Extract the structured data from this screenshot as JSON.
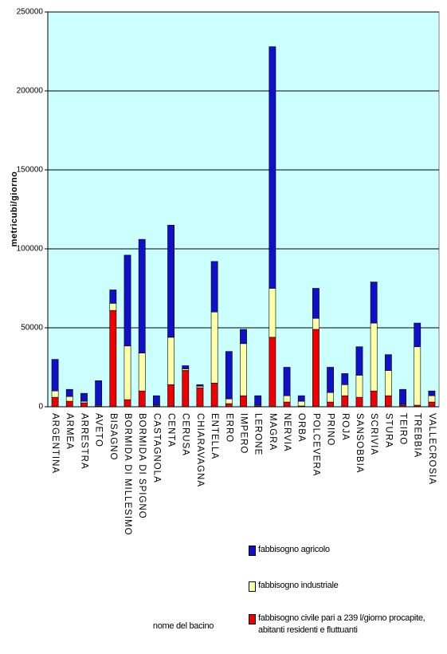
{
  "chart_data": {
    "type": "stacked_bar",
    "y_label": "metricubi/giorno",
    "x_label": "nome del bacino",
    "categories": [
      "ARGENTINA",
      "ARMEA",
      "ARRESTRA",
      "AVETO",
      "BISAGNO",
      "BORMIDA DI MILLESIMO",
      "BORMIDA DI SPIGNO",
      "CASTAGNOLA",
      "CENTA",
      "CERUSA",
      "CHIARAVAGNA",
      "ENTELLA",
      "ERRO",
      "IMPERO",
      "LERONE",
      "MAGRA",
      "NERVIA",
      "ORBA",
      "POLCEVERA",
      "PRINO",
      "ROJA",
      "SANSOBBIA",
      "SCRIVIA",
      "STURA",
      "TEIRO",
      "TREBBIA",
      "VALLECROSIA"
    ],
    "series": [
      {
        "name": "fabbisogno agricolo",
        "color": "#1010c8",
        "values": [
          20000,
          4500,
          5000,
          15500,
          8500,
          57500,
          72000,
          6000,
          71000,
          2000,
          1000,
          32000,
          30000,
          9000,
          6000,
          153000,
          18000,
          3500,
          19000,
          16000,
          7000,
          18000,
          26000,
          10000,
          9500,
          15000,
          3000
        ]
      },
      {
        "name": "fabbisogno industriale",
        "color": "#ffffaa",
        "values": [
          4000,
          3000,
          1000,
          500,
          4500,
          34000,
          24000,
          500,
          30000,
          1000,
          1000,
          45000,
          3000,
          33000,
          500,
          31000,
          4000,
          3000,
          7000,
          6000,
          7000,
          14000,
          43000,
          16000,
          500,
          37000,
          4000
        ]
      },
      {
        "name": "fabbisogno civile pari a 239 l/giorno procapite, abitanti residenti e fluttuanti",
        "color": "#ee0000",
        "values": [
          6000,
          3500,
          2500,
          500,
          61000,
          4500,
          10000,
          500,
          14000,
          23000,
          12000,
          15000,
          2000,
          7000,
          500,
          44000,
          3000,
          500,
          49000,
          3000,
          7000,
          6000,
          10000,
          7000,
          1000,
          1000,
          3000
        ]
      }
    ],
    "ylim": [
      0,
      250000
    ],
    "yticks": [
      0,
      50000,
      100000,
      150000,
      200000,
      250000
    ],
    "grid": true,
    "background": "#ccffff"
  }
}
